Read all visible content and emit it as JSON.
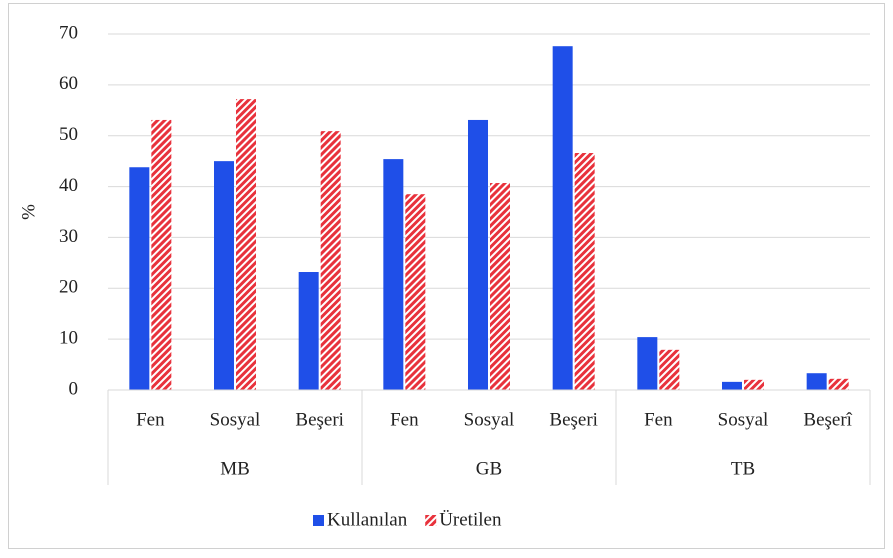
{
  "chart_data": {
    "type": "bar",
    "categories": [
      "Fen",
      "Sosyal",
      "Beşeri",
      "Fen",
      "Sosyal",
      "Beşeri",
      "Fen",
      "Sosyal",
      "Beşerî"
    ],
    "groups": [
      "MB",
      "GB",
      "TB"
    ],
    "y_label": "%",
    "series": [
      {
        "name": "Kullanılan",
        "color": "#1f4fe8",
        "values": [
          43.8,
          45.0,
          23.2,
          45.4,
          53.1,
          67.6,
          10.4,
          1.6,
          3.3
        ]
      },
      {
        "name": "Üretilen",
        "color": "#e8323c",
        "hatched": true,
        "values": [
          53.1,
          57.2,
          50.9,
          38.5,
          40.7,
          46.6,
          7.9,
          2.0,
          2.2
        ]
      }
    ],
    "ylim": [
      0,
      70
    ],
    "yticks": [
      0,
      10,
      20,
      30,
      40,
      50,
      60,
      70
    ],
    "grid": true,
    "legend": "bottom"
  }
}
